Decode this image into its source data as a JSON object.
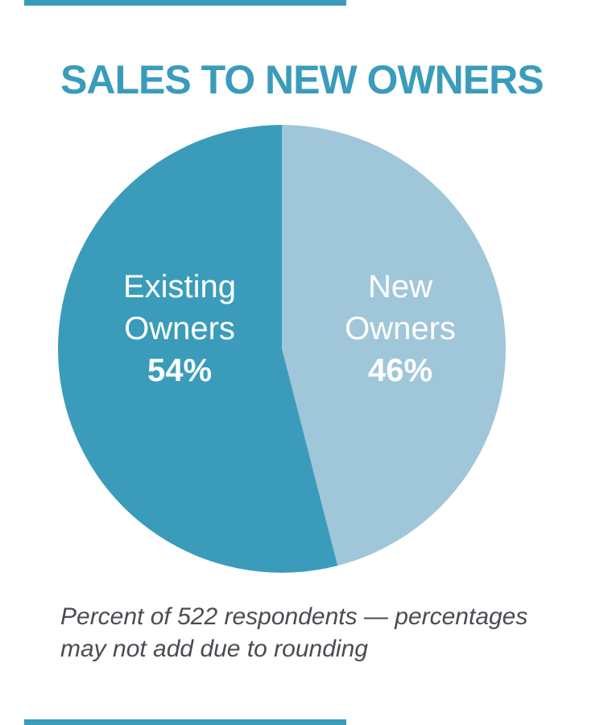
{
  "header": {
    "title": "SALES TO NEW OWNERS"
  },
  "chart_data": {
    "type": "pie",
    "title": "SALES TO NEW OWNERS",
    "labels": [
      "Existing Owners",
      "New Owners"
    ],
    "values": [
      54,
      46
    ],
    "value_labels": [
      "54%",
      "46%"
    ],
    "slice_label_lines": [
      [
        "Existing",
        "Owners",
        "54%"
      ],
      [
        "New",
        "Owners",
        "46%"
      ]
    ],
    "colors": [
      "#3A9CBA",
      "#A0C6DA"
    ],
    "start_angle_deg": 0,
    "direction": "clockwise, light (New Owners) slice first from 12 o'clock",
    "legend_position": "none — labels rendered inside slices",
    "note": "Percent of 522 respondents — percentages may not add due to rounding"
  },
  "footnote": {
    "line1": "Percent of 522 respondents — percentages",
    "line2": "may not add due to rounding"
  },
  "colors": {
    "accent_teal": "#3A9CBA",
    "slice_existing": "#3A9CBA",
    "slice_new": "#A0C6DA",
    "slice_label_text": "#FFFFFF",
    "footnote_text": "#4B4B52",
    "background": "#FFFFFF"
  }
}
